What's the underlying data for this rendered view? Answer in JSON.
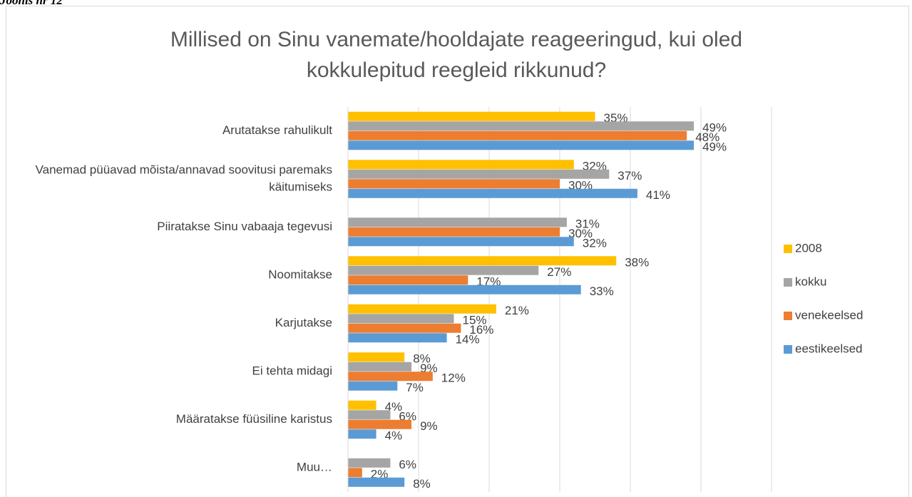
{
  "caption": "Joonis nr 12",
  "chart_data": {
    "type": "hbar",
    "title": "Millised on Sinu vanemate/hooldajate reageeringud, kui oled kokkulepitud reegleid rikkunud?",
    "categories": [
      "Arutatakse rahulikult",
      "Vanemad püüavad mõista/annavad soovitusi paremaks käitumiseks",
      "Piiratakse Sinu vabaaja tegevusi",
      "Noomitakse",
      "Karjutakse",
      "Ei tehta midagi",
      "Määratakse füüsiline karistus",
      "Muu…"
    ],
    "series": [
      {
        "name": "2008",
        "color": "#FFC000",
        "values": [
          35,
          32,
          null,
          38,
          21,
          8,
          4,
          null
        ],
        "value_labels": [
          "35%",
          "32%",
          null,
          "38%",
          "21%",
          "8%",
          "4%",
          null
        ]
      },
      {
        "name": "kokku",
        "color": "#A5A5A5",
        "values": [
          49,
          37,
          31,
          27,
          15,
          9,
          6,
          6
        ],
        "value_labels": [
          "49%",
          "37%",
          "31%",
          "27%",
          "15%",
          "9%",
          "6%",
          "6%"
        ]
      },
      {
        "name": "venekeelsed",
        "color": "#ED7D31",
        "values": [
          48,
          30,
          30,
          17,
          16,
          12,
          9,
          2
        ],
        "value_labels": [
          "48%",
          "30%",
          "30%",
          "17%",
          "16%",
          "12%",
          "9%",
          "2%"
        ]
      },
      {
        "name": "eestikeelsed",
        "color": "#5B9BD5",
        "values": [
          49,
          41,
          32,
          33,
          14,
          7,
          4,
          8
        ],
        "value_labels": [
          "49%",
          "41%",
          "32%",
          "33%",
          "14%",
          "7%",
          "4%",
          "8%"
        ]
      }
    ],
    "xlim": [
      0,
      60
    ],
    "xticks": [
      0,
      10,
      20,
      30,
      40,
      50,
      60
    ],
    "grid": true,
    "legend": "right"
  }
}
